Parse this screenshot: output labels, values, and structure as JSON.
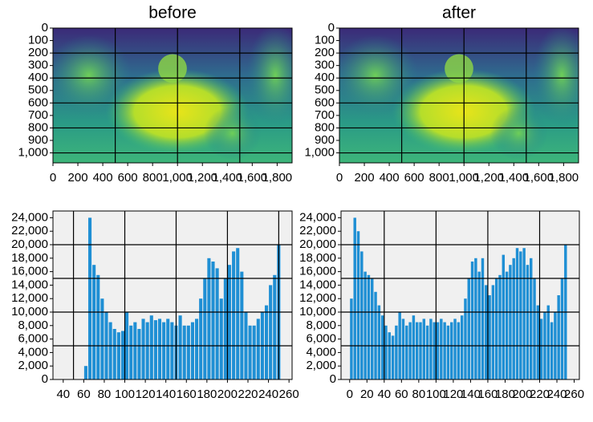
{
  "chart_data": [
    {
      "type": "image",
      "title": "before",
      "xlim": [
        0,
        1920
      ],
      "ylim": [
        1080,
        0
      ],
      "xticks": [
        0,
        200,
        400,
        600,
        800,
        {
          "value": 1000,
          "label": "1,000"
        },
        {
          "value": 1200,
          "label": "1,200"
        },
        {
          "value": 1400,
          "label": "1,400"
        },
        {
          "value": 1600,
          "label": "1,600"
        },
        {
          "value": 1800,
          "label": "1,800"
        }
      ],
      "yticks": [
        0,
        100,
        200,
        300,
        400,
        500,
        600,
        700,
        800,
        900,
        {
          "value": 1000,
          "label": "1,000"
        }
      ],
      "xgrid": [
        500,
        1000,
        1500
      ],
      "ygrid": [
        200,
        400,
        600,
        800,
        1000
      ]
    },
    {
      "type": "image",
      "title": "after",
      "xlim": [
        0,
        1920
      ],
      "ylim": [
        1080,
        0
      ],
      "xticks": [
        0,
        200,
        400,
        600,
        800,
        {
          "value": 1000,
          "label": "1,000"
        },
        {
          "value": 1200,
          "label": "1,200"
        },
        {
          "value": 1400,
          "label": "1,400"
        },
        {
          "value": 1600,
          "label": "1,600"
        },
        {
          "value": 1800,
          "label": "1,800"
        }
      ],
      "yticks": [
        0,
        100,
        200,
        300,
        400,
        500,
        600,
        700,
        800,
        900,
        {
          "value": 1000,
          "label": "1,000"
        }
      ],
      "xgrid": [
        500,
        1000,
        1500
      ],
      "ygrid": [
        200,
        400,
        600,
        800,
        1000
      ]
    },
    {
      "type": "histogram",
      "color": "#1f8fd4",
      "bins": [
        60,
        64,
        68,
        72,
        76,
        80,
        84,
        88,
        92,
        96,
        100,
        104,
        108,
        112,
        116,
        120,
        124,
        128,
        132,
        136,
        140,
        144,
        148,
        152,
        156,
        160,
        164,
        168,
        172,
        176,
        180,
        184,
        188,
        192,
        196,
        200,
        204,
        208,
        212,
        216,
        220,
        224,
        228,
        232,
        236,
        240,
        244,
        248,
        252
      ],
      "values": [
        2000,
        24000,
        17000,
        15500,
        12000,
        10000,
        8500,
        7500,
        7000,
        7200,
        10000,
        8000,
        8500,
        7500,
        9000,
        8500,
        9500,
        8800,
        9000,
        8500,
        9000,
        8500,
        8000,
        9500,
        8000,
        8000,
        8500,
        9000,
        12000,
        15000,
        18000,
        17500,
        16500,
        12000,
        15000,
        17000,
        19000,
        19500,
        16000,
        10000,
        8000,
        8000,
        9000,
        10000,
        11000,
        14000,
        15500,
        20000
      ],
      "xlim": [
        30,
        263
      ],
      "ylim": [
        0,
        25000
      ],
      "xticks": [
        40,
        60,
        80,
        100,
        120,
        140,
        160,
        180,
        200,
        220,
        240,
        260
      ],
      "yticks": [
        0,
        {
          "value": 2000,
          "label": "2,000"
        },
        {
          "value": 4000,
          "label": "4,000"
        },
        {
          "value": 6000,
          "label": "6,000"
        },
        {
          "value": 8000,
          "label": "8,000"
        },
        {
          "value": 10000,
          "label": "10,000"
        },
        {
          "value": 12000,
          "label": "12,000"
        },
        {
          "value": 14000,
          "label": "14,000"
        },
        {
          "value": 16000,
          "label": "16,000"
        },
        {
          "value": 18000,
          "label": "18,000"
        },
        {
          "value": 20000,
          "label": "20,000"
        },
        {
          "value": 22000,
          "label": "22,000"
        },
        {
          "value": 24000,
          "label": "24,000"
        }
      ],
      "xgrid": [
        50,
        100,
        150,
        200,
        250
      ],
      "ygrid": [
        5000,
        10000,
        15000,
        20000
      ]
    },
    {
      "type": "histogram",
      "color": "#1f8fd4",
      "bins": [
        0,
        4,
        8,
        12,
        16,
        20,
        24,
        28,
        32,
        36,
        40,
        44,
        48,
        52,
        56,
        60,
        64,
        68,
        72,
        76,
        80,
        84,
        88,
        92,
        96,
        100,
        104,
        108,
        112,
        116,
        120,
        124,
        128,
        132,
        136,
        140,
        144,
        148,
        152,
        156,
        160,
        164,
        168,
        172,
        176,
        180,
        184,
        188,
        192,
        196,
        200,
        204,
        208,
        212,
        216,
        220,
        224,
        228,
        232,
        236,
        240,
        244,
        248,
        252
      ],
      "values": [
        12000,
        24000,
        22000,
        19000,
        16000,
        15500,
        15000,
        13000,
        11000,
        9500,
        8000,
        7000,
        6500,
        8000,
        10000,
        9000,
        8000,
        8500,
        9500,
        8500,
        8500,
        9000,
        8000,
        9000,
        8500,
        8500,
        9000,
        8500,
        8000,
        8500,
        9000,
        8500,
        9500,
        12000,
        15000,
        17500,
        18000,
        16000,
        18000,
        14000,
        12500,
        14000,
        15000,
        15500,
        18500,
        16000,
        17000,
        18000,
        19500,
        19000,
        19500,
        17000,
        18000,
        15000,
        11000,
        9000,
        10000,
        11000,
        8500,
        10000,
        12500,
        15000,
        20000
      ],
      "xlim": [
        -10,
        266
      ],
      "ylim": [
        0,
        25000
      ],
      "xticks": [
        0,
        20,
        40,
        60,
        80,
        100,
        120,
        140,
        160,
        180,
        200,
        220,
        240,
        260
      ],
      "yticks": [
        0,
        {
          "value": 2000,
          "label": "2,000"
        },
        {
          "value": 4000,
          "label": "4,000"
        },
        {
          "value": 6000,
          "label": "6,000"
        },
        {
          "value": 8000,
          "label": "8,000"
        },
        {
          "value": 10000,
          "label": "10,000"
        },
        {
          "value": 12000,
          "label": "12,000"
        },
        {
          "value": 14000,
          "label": "14,000"
        },
        {
          "value": 16000,
          "label": "16,000"
        },
        {
          "value": 18000,
          "label": "18,000"
        },
        {
          "value": 20000,
          "label": "20,000"
        },
        {
          "value": 22000,
          "label": "22,000"
        },
        {
          "value": 24000,
          "label": "24,000"
        }
      ],
      "xgrid": [
        40,
        100,
        160,
        220
      ],
      "ygrid": [
        5000,
        10000,
        15000,
        20000
      ]
    }
  ]
}
